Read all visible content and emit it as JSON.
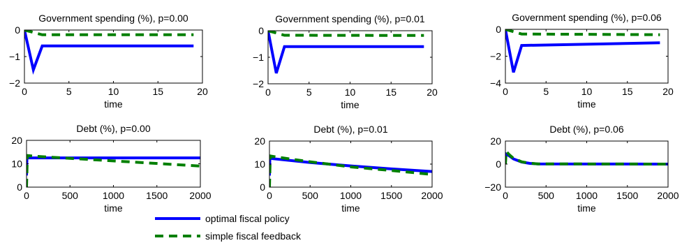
{
  "chart_data": [
    {
      "type": "line",
      "title": "Government spending (%), p=0.00",
      "xlabel": "time",
      "ylabel": "",
      "xlim": [
        0,
        20
      ],
      "ylim": [
        -2,
        0
      ],
      "xticks": [
        0,
        5,
        10,
        15,
        20
      ],
      "yticks": [
        -2,
        -1,
        0
      ],
      "xtick_labels": [
        "0",
        "5",
        "10",
        "15",
        "20"
      ],
      "ytick_labels": [
        "−2",
        "−1",
        "0"
      ],
      "series": [
        {
          "name": "optimal fiscal policy",
          "x": [
            0,
            1,
            2,
            19
          ],
          "values": [
            0,
            -1.5,
            -0.6,
            -0.6
          ]
        },
        {
          "name": "simple fiscal feedback",
          "x": [
            0,
            2,
            19
          ],
          "values": [
            0,
            -0.18,
            -0.18
          ]
        }
      ]
    },
    {
      "type": "line",
      "title": "Government spending (%), p=0.01",
      "xlabel": "time",
      "ylabel": "",
      "xlim": [
        0,
        20
      ],
      "ylim": [
        -2,
        0
      ],
      "xticks": [
        0,
        5,
        10,
        15,
        20
      ],
      "yticks": [
        -2,
        -1,
        0
      ],
      "xtick_labels": [
        "0",
        "5",
        "10",
        "15",
        "20"
      ],
      "ytick_labels": [
        "−2",
        "−1",
        "0"
      ],
      "series": [
        {
          "name": "optimal fiscal policy",
          "x": [
            0,
            1,
            2,
            19
          ],
          "values": [
            0,
            -1.6,
            -0.6,
            -0.6
          ]
        },
        {
          "name": "simple fiscal feedback",
          "x": [
            0,
            2,
            19
          ],
          "values": [
            0,
            -0.17,
            -0.18
          ]
        }
      ]
    },
    {
      "type": "line",
      "title": "Government spending (%), p=0.06",
      "xlabel": "time",
      "ylabel": "",
      "xlim": [
        0,
        20
      ],
      "ylim": [
        -4,
        0
      ],
      "xticks": [
        0,
        5,
        10,
        15,
        20
      ],
      "yticks": [
        -4,
        -2,
        0
      ],
      "xtick_labels": [
        "0",
        "5",
        "10",
        "15",
        "20"
      ],
      "ytick_labels": [
        "−4",
        "−2",
        "0"
      ],
      "series": [
        {
          "name": "optimal fiscal policy",
          "x": [
            0,
            1,
            2,
            19
          ],
          "values": [
            0,
            -3.2,
            -1.2,
            -1.0
          ]
        },
        {
          "name": "simple fiscal feedback",
          "x": [
            0,
            2,
            19
          ],
          "values": [
            0,
            -0.35,
            -0.4
          ]
        }
      ]
    },
    {
      "type": "line",
      "title": "Debt (%), p=0.00",
      "xlabel": "time",
      "ylabel": "",
      "xlim": [
        0,
        2000
      ],
      "ylim": [
        0,
        20
      ],
      "xticks": [
        0,
        500,
        1000,
        1500,
        2000
      ],
      "yticks": [
        0,
        10,
        20
      ],
      "xtick_labels": [
        "0",
        "500",
        "1000",
        "1500",
        "2000"
      ],
      "ytick_labels": [
        "0",
        "10",
        "20"
      ],
      "series": [
        {
          "name": "optimal fiscal policy",
          "x": [
            0,
            5,
            2000
          ],
          "values": [
            5,
            12.5,
            12.5
          ]
        },
        {
          "name": "simple fiscal feedback",
          "x": [
            0,
            10,
            100,
            2000
          ],
          "values": [
            0,
            13.5,
            13.2,
            9
          ]
        }
      ]
    },
    {
      "type": "line",
      "title": "Debt (%), p=0.01",
      "xlabel": "time",
      "ylabel": "",
      "xlim": [
        0,
        2000
      ],
      "ylim": [
        0,
        20
      ],
      "xticks": [
        0,
        500,
        1000,
        1500,
        2000
      ],
      "yticks": [
        0,
        10,
        20
      ],
      "xtick_labels": [
        "0",
        "500",
        "1000",
        "1500",
        "2000"
      ],
      "ytick_labels": [
        "0",
        "10",
        "20"
      ],
      "series": [
        {
          "name": "optimal fiscal policy",
          "x": [
            0,
            5,
            500,
            1000,
            1500,
            2000
          ],
          "values": [
            5,
            12.5,
            10.7,
            9.2,
            7.9,
            6.8
          ]
        },
        {
          "name": "simple fiscal feedback",
          "x": [
            0,
            10,
            100,
            500,
            1000,
            1500,
            2000
          ],
          "values": [
            0,
            13.5,
            13.0,
            11.0,
            8.8,
            7.2,
            5.5
          ]
        }
      ]
    },
    {
      "type": "line",
      "title": "Debt (%), p=0.06",
      "xlabel": "time",
      "ylabel": "",
      "xlim": [
        0,
        2000
      ],
      "ylim": [
        -20,
        20
      ],
      "xticks": [
        0,
        500,
        1000,
        1500,
        2000
      ],
      "yticks": [
        -20,
        0,
        20
      ],
      "xtick_labels": [
        "0",
        "500",
        "1000",
        "1500",
        "2000"
      ],
      "ytick_labels": [
        "−20",
        "0",
        "20"
      ],
      "series": [
        {
          "name": "optimal fiscal policy",
          "x": [
            0,
            5,
            50,
            100,
            200,
            300,
            400,
            2000
          ],
          "values": [
            2,
            9,
            7,
            4.5,
            1.8,
            0.6,
            0.2,
            0
          ]
        },
        {
          "name": "simple fiscal feedback",
          "x": [
            0,
            10,
            50,
            100,
            200,
            300,
            400,
            2000
          ],
          "values": [
            0,
            11,
            8,
            5,
            2,
            0.7,
            0.2,
            0
          ]
        }
      ]
    }
  ],
  "legend": {
    "entries": [
      {
        "label": "optimal fiscal policy",
        "color": "#0000ff",
        "style": "solid"
      },
      {
        "label": "simple fiscal feedback",
        "color": "#007f00",
        "style": "dashed"
      }
    ]
  },
  "colors": {
    "optimal": "#0000ff",
    "feedback": "#007f00"
  }
}
